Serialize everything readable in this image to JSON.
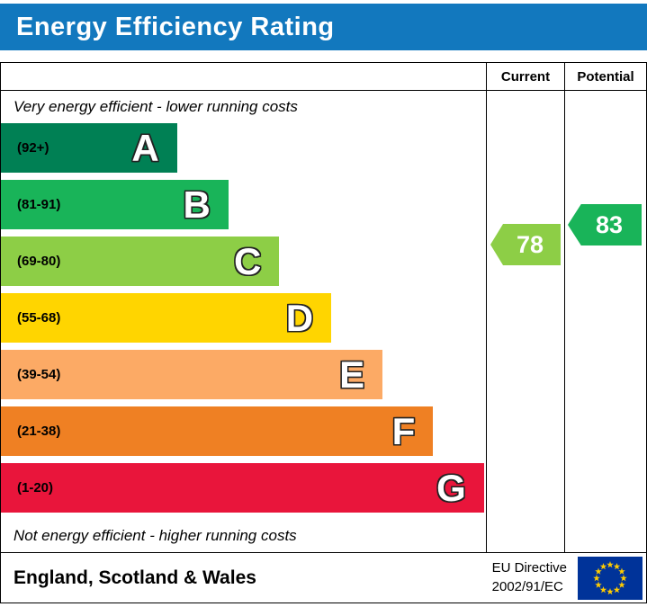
{
  "header": {
    "title": "Energy Efficiency Rating"
  },
  "columns": {
    "current": "Current",
    "potential": "Potential"
  },
  "notes": {
    "top": "Very energy efficient - lower running costs",
    "bottom": "Not energy efficient - higher running costs"
  },
  "bands": [
    {
      "letter": "A",
      "range": "(92+)",
      "color": "#008054",
      "width_pct": 36.3
    },
    {
      "letter": "B",
      "range": "(81-91)",
      "color": "#19b459",
      "width_pct": 46.9
    },
    {
      "letter": "C",
      "range": "(69-80)",
      "color": "#8dce46",
      "width_pct": 57.4
    },
    {
      "letter": "D",
      "range": "(55-68)",
      "color": "#ffd500",
      "width_pct": 68.1
    },
    {
      "letter": "E",
      "range": "(39-54)",
      "color": "#fcaa65",
      "width_pct": 78.7
    },
    {
      "letter": "F",
      "range": "(21-38)",
      "color": "#ef8023",
      "width_pct": 89.1
    },
    {
      "letter": "G",
      "range": "(1-20)",
      "color": "#e9153b",
      "width_pct": 99.6
    }
  ],
  "current": {
    "value": "78",
    "color": "#8dce46"
  },
  "potential": {
    "value": "83",
    "color": "#19b459"
  },
  "footer": {
    "region": "England, Scotland & Wales",
    "directive_line1": "EU Directive",
    "directive_line2": "2002/91/EC"
  },
  "colors": {
    "banner_bg": "#1278be",
    "eu_blue": "#003399",
    "eu_star": "#ffcc00"
  },
  "chart_data": {
    "type": "bar",
    "title": "Energy Efficiency Rating",
    "categories": [
      "A",
      "B",
      "C",
      "D",
      "E",
      "F",
      "G"
    ],
    "band_ranges": [
      "92+",
      "81-91",
      "69-80",
      "55-68",
      "39-54",
      "21-38",
      "1-20"
    ],
    "band_colors": [
      "#008054",
      "#19b459",
      "#8dce46",
      "#ffd500",
      "#fcaa65",
      "#ef8023",
      "#e9153b"
    ],
    "bar_lengths_pct": [
      36.3,
      46.9,
      57.4,
      68.1,
      78.7,
      89.1,
      99.6
    ],
    "columns": [
      "Current",
      "Potential"
    ],
    "current": 78,
    "current_band": "C",
    "potential": 83,
    "potential_band": "B",
    "top_note": "Very energy efficient - lower running costs",
    "bottom_note": "Not energy efficient - higher running costs",
    "region_note": "England, Scotland & Wales",
    "directive": "EU Directive 2002/91/EC"
  }
}
